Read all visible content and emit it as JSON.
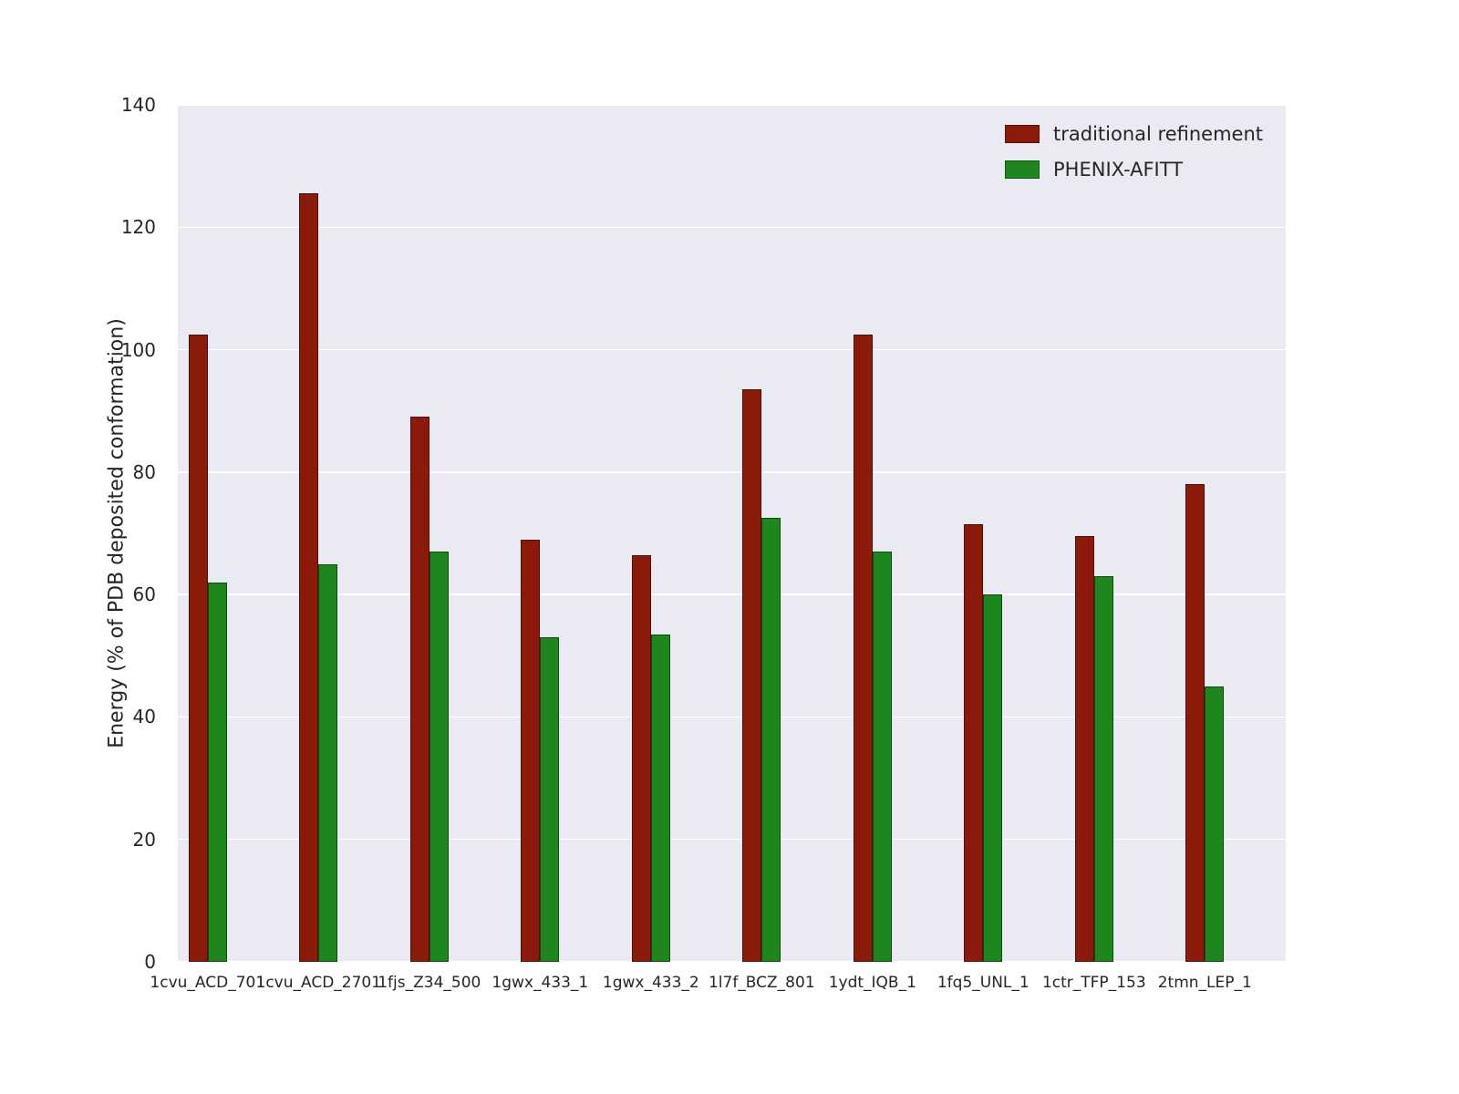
{
  "figure": {
    "background": "#ffffff",
    "plot_background": "#eaeaf2",
    "grid_color": "#ffffff",
    "tick_color": "#262626",
    "bar_edge_color": "#000000"
  },
  "chart_data": {
    "type": "bar",
    "title": "",
    "xlabel": "",
    "ylabel": "Energy (% of PDB deposited conformation)",
    "ylim": [
      0,
      140
    ],
    "yticks": [
      0,
      20,
      40,
      60,
      80,
      100,
      120,
      140
    ],
    "grid": true,
    "legend_position": "upper right",
    "categories": [
      "1cvu_ACD_701",
      "1cvu_ACD_2701",
      "1fjs_Z34_500",
      "1gwx_433_1",
      "1gwx_433_2",
      "1l7f_BCZ_801",
      "1ydt_IQB_1",
      "1fq5_UNL_1",
      "1ctr_TFP_153",
      "2tmn_LEP_1"
    ],
    "series": [
      {
        "name": "traditional refinement",
        "color": "#8b1a0b",
        "values": [
          102.5,
          125.5,
          89,
          69,
          66.5,
          93.5,
          102.5,
          71.5,
          69.5,
          78
        ]
      },
      {
        "name": "PHENIX-AFITT",
        "color": "#1d861d",
        "values": [
          62,
          65,
          67,
          53,
          53.5,
          72.5,
          67,
          60,
          63,
          45
        ]
      }
    ]
  }
}
